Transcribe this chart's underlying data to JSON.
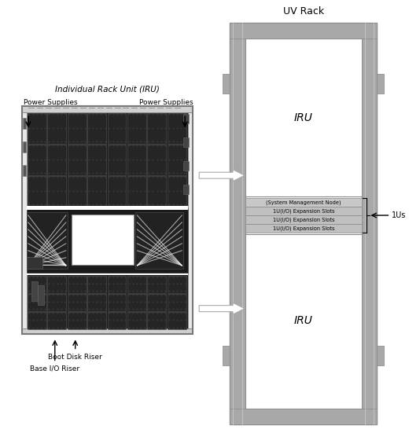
{
  "title": "UV Rack",
  "iru_label": "Individual Rack Unit (IRU)",
  "power_supplies_left": "Power Supplies",
  "power_supplies_right": "Power Supplies",
  "boot_disk_riser": "Boot Disk Riser",
  "base_io_riser": "Base I/O Riser",
  "iru_text": "IRU",
  "slot_labels": [
    "(System Management Node)",
    "1U(I/O) Expansion Slots",
    "1U(I/O) Expansion Slots",
    "1U(I/O) Expansion Slots"
  ],
  "ius_label": "1Us",
  "bg_color": "#ffffff",
  "rack_outer_color": "#b8b8b8",
  "rack_inner_bg": "#ffffff",
  "slot_color_0": "#c8c8c8",
  "slot_color_1": "#c0c0c0",
  "pcb_bg": "#1a1a1a",
  "module_color": "#2d2d2d",
  "module_border": "#555555",
  "connector_color": "#d0d0d0"
}
